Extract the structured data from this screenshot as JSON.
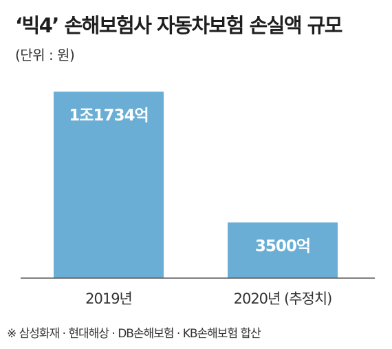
{
  "title": "‘빅4’ 손해보험사 자동차보험 손실액 규모",
  "unit_label": "(단위 : 원)",
  "source_note": "※ 삼성화재 · 현대해상 · DB손해보험 · KB손해보험 합산",
  "colors": {
    "bar": "#6aaed6",
    "axis": "#555555",
    "label_on_bar": "#ffffff",
    "label_above": "#222222"
  },
  "chart_data": {
    "type": "bar",
    "title": "‘빅4’ 손해보험사 자동차보험 손실액 규모",
    "ylabel": "(단위 : 원)",
    "categories": [
      "2019년",
      "2020년 (추정치)"
    ],
    "values": [
      11734,
      3500
    ],
    "value_unit": "억 원",
    "data_labels": [
      "1조1734억",
      "3500억"
    ],
    "ylim": [
      0,
      12000
    ],
    "grid": false,
    "legend": "none"
  }
}
